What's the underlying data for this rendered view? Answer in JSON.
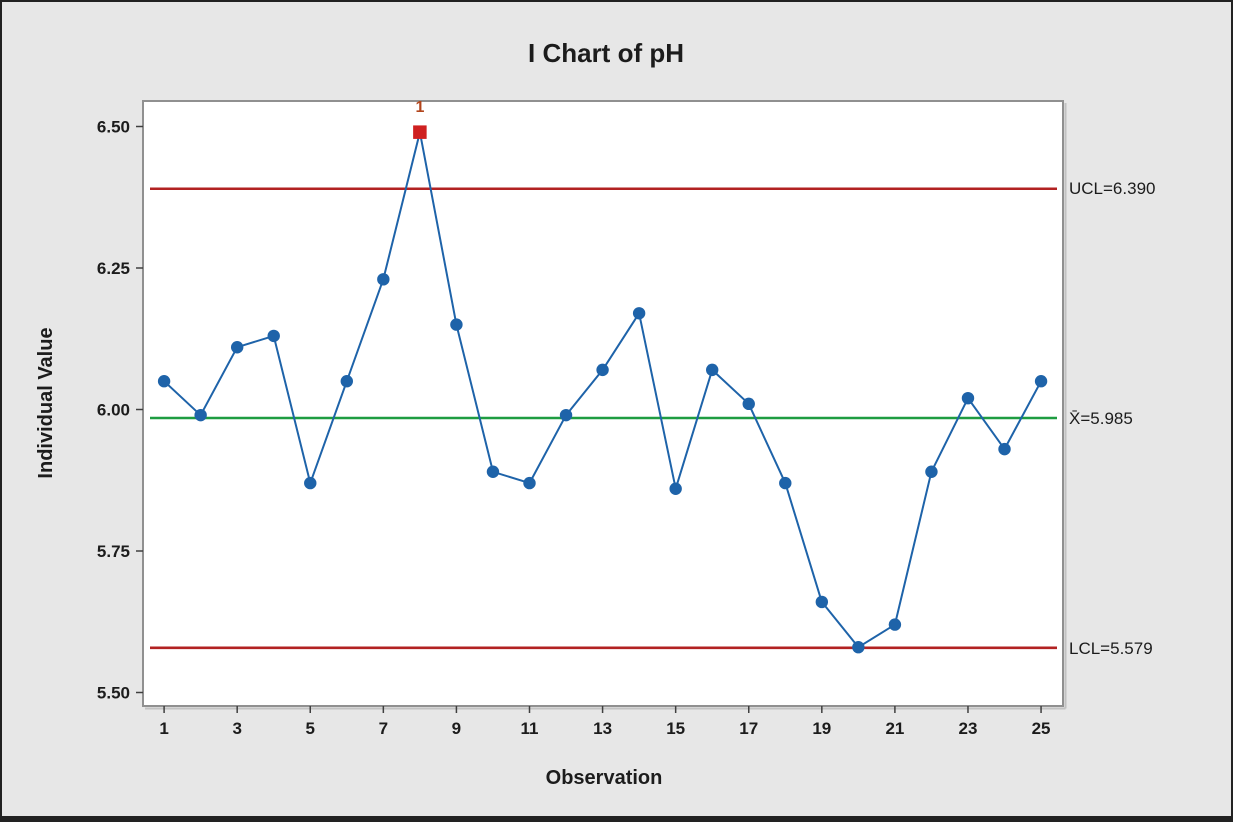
{
  "title": "I Chart of pH",
  "x_axis": {
    "label": "Observation",
    "ticks": [
      1,
      3,
      5,
      7,
      9,
      11,
      13,
      15,
      17,
      19,
      21,
      23,
      25
    ]
  },
  "y_axis": {
    "label": "Individual Value",
    "ticks": [
      "6.50",
      "6.25",
      "6.00",
      "5.75",
      "5.50"
    ],
    "tick_values": [
      6.5,
      6.25,
      6.0,
      5.75,
      5.5
    ]
  },
  "limits": {
    "ucl": {
      "label": "UCL=6.390",
      "value": 6.39
    },
    "center": {
      "label": "X̄=5.985",
      "value": 5.985
    },
    "lcl": {
      "label": "LCL=5.579",
      "value": 5.579
    }
  },
  "outlier": {
    "observation": 8,
    "label": "1"
  },
  "colors": {
    "background": "#E7E7E7",
    "plot_background": "#FFFFFF",
    "plot_border": "#909090",
    "series_blue": "#1E63A9",
    "center_line_green": "#1E9C41",
    "control_limit_red": "#B22222",
    "out_of_control_red": "#CF2020",
    "out_of_control_label": "#B2451C",
    "text": "#1C1C1C",
    "tick_mark": "#3F3F3F",
    "frame": "#222222"
  },
  "chart_data": {
    "type": "line",
    "title": "I Chart of pH",
    "xlabel": "Observation",
    "ylabel": "Individual Value",
    "x": [
      1,
      2,
      3,
      4,
      5,
      6,
      7,
      8,
      9,
      10,
      11,
      12,
      13,
      14,
      15,
      16,
      17,
      18,
      19,
      20,
      21,
      22,
      23,
      24,
      25
    ],
    "values": [
      6.05,
      5.99,
      6.11,
      6.13,
      5.87,
      6.05,
      6.23,
      6.49,
      6.15,
      5.89,
      5.87,
      5.99,
      6.07,
      6.17,
      5.86,
      6.07,
      6.01,
      5.87,
      5.66,
      5.58,
      5.62,
      5.89,
      6.02,
      5.93,
      6.05
    ],
    "center_line": 5.985,
    "ucl": 6.39,
    "lcl": 5.579,
    "ylim": [
      5.476,
      6.545
    ],
    "xlim": [
      0.45,
      25.6
    ],
    "grid": false,
    "legend": "none",
    "out_of_control_points": [
      8
    ],
    "marker": "circle",
    "out_of_control_marker": "square"
  }
}
